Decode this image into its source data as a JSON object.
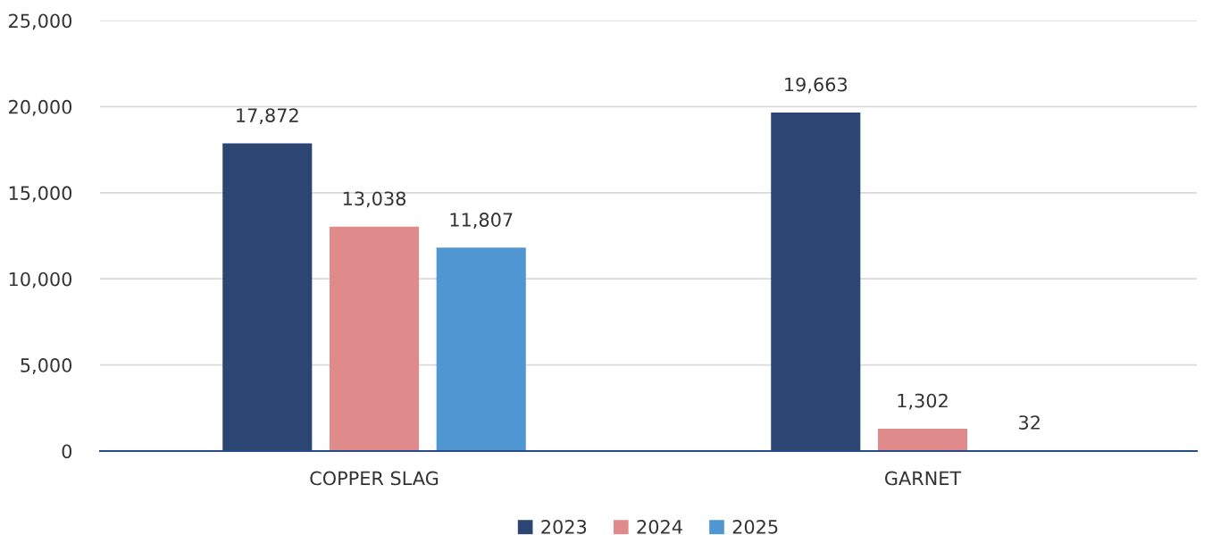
{
  "chart_data": {
    "type": "bar",
    "categories": [
      "COPPER SLAG",
      "GARNET"
    ],
    "series": [
      {
        "name": "2023",
        "color": "#2c4674",
        "values": [
          17872,
          19663
        ],
        "value_labels": [
          "17,872",
          "19,663"
        ]
      },
      {
        "name": "2024",
        "color": "#e08b8b",
        "values": [
          13038,
          1302
        ],
        "value_labels": [
          "13,038",
          "1,302"
        ]
      },
      {
        "name": "2025",
        "color": "#5096d3",
        "values": [
          11807,
          32
        ],
        "value_labels": [
          "11,807",
          "32"
        ]
      }
    ],
    "ylim": [
      0,
      25000
    ],
    "yticks": [
      {
        "value": 0,
        "label": "0"
      },
      {
        "value": 5000,
        "label": "5,000"
      },
      {
        "value": 10000,
        "label": "10,000"
      },
      {
        "value": 15000,
        "label": "15,000"
      },
      {
        "value": 20000,
        "label": "20,000"
      },
      {
        "value": 25000,
        "label": "25,000"
      }
    ],
    "grid": "y",
    "legend": "bottom"
  }
}
